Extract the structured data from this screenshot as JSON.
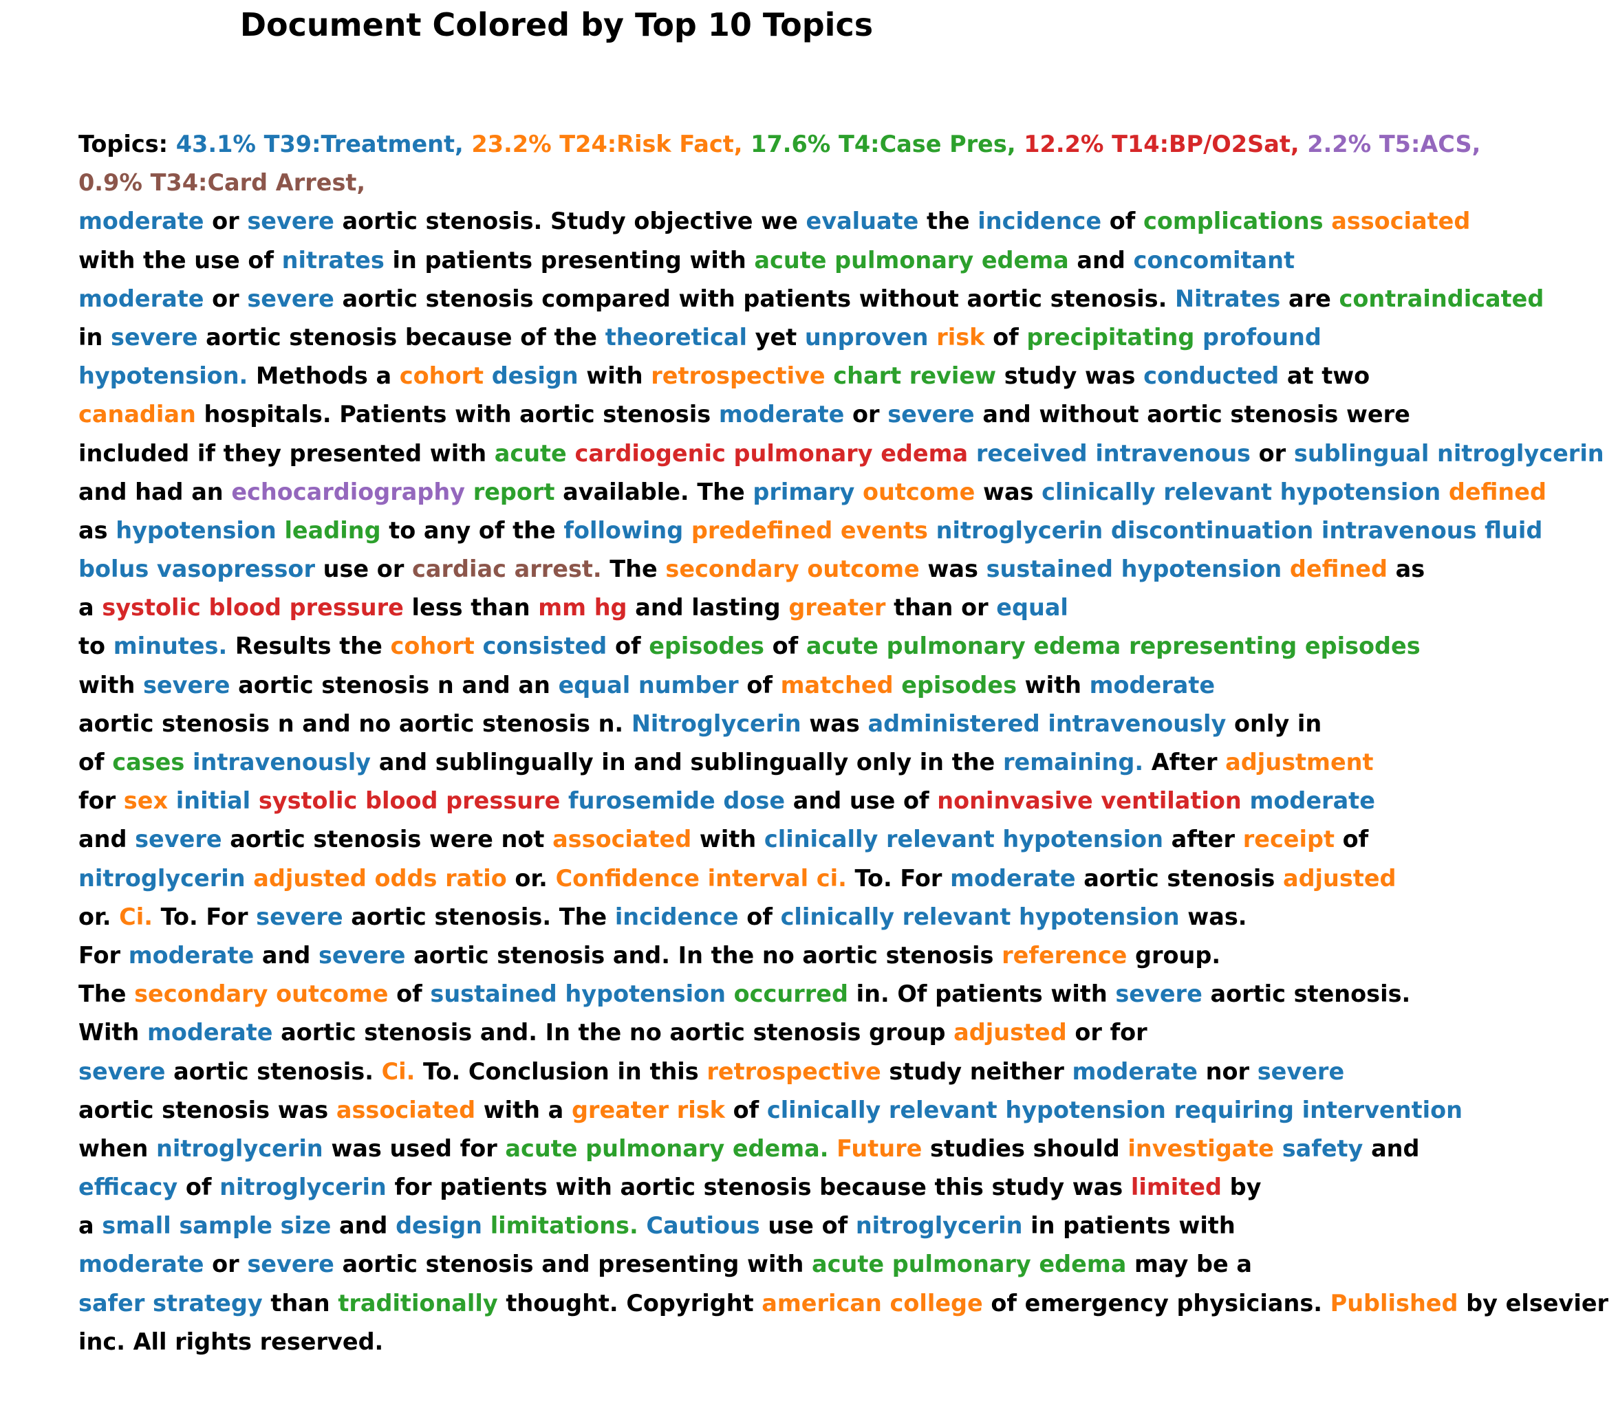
{
  "title": "Document Colored by Top 10 Topics",
  "colors": {
    "black": "#000000",
    "T39": "#1f77b4",
    "T24": "#ff7f0e",
    "T4": "#2ca02c",
    "T14": "#d62728",
    "T5": "#9467bd",
    "T34": "#8c564b"
  },
  "chart_data": {
    "type": "table",
    "title": "Document Colored by Top 10 Topics",
    "topics": [
      {
        "label": "43.1% T39:Treatment,",
        "id": "T39",
        "share_pct": 43.1,
        "color": "#1f77b4"
      },
      {
        "label": "23.2% T24:Risk Fact,",
        "id": "T24",
        "share_pct": 23.2,
        "color": "#ff7f0e"
      },
      {
        "label": "17.6% T4:Case Pres,",
        "id": "T4",
        "share_pct": 17.6,
        "color": "#2ca02c"
      },
      {
        "label": "12.2% T14:BP/O2Sat,",
        "id": "T14",
        "share_pct": 12.2,
        "color": "#d62728"
      },
      {
        "label": "2.2% T5:ACS,",
        "id": "T5",
        "share_pct": 2.2,
        "color": "#9467bd"
      },
      {
        "label": "0.9% T34:Card Arrest,",
        "id": "T34",
        "share_pct": 0.9,
        "color": "#8c564b"
      }
    ]
  },
  "lines": [
    [
      [
        "Topics: ",
        ""
      ],
      [
        "43.1% T39:Treatment,",
        "T39"
      ],
      [
        " ",
        ""
      ],
      [
        "23.2% T24:Risk Fact,",
        "T24"
      ],
      [
        " ",
        ""
      ],
      [
        "17.6% T4:Case Pres,",
        "T4"
      ],
      [
        " ",
        ""
      ],
      [
        "12.2% T14:BP/O2Sat,",
        "T14"
      ],
      [
        " ",
        ""
      ],
      [
        "2.2% T5:ACS,",
        "T5"
      ]
    ],
    [
      [
        "0.9% T34:Card Arrest,",
        "T34"
      ]
    ],
    [
      [
        "moderate",
        "T39"
      ],
      [
        " or ",
        ""
      ],
      [
        "severe",
        "T39"
      ],
      [
        " aortic stenosis. Study objective we ",
        ""
      ],
      [
        "evaluate",
        "T39"
      ],
      [
        " the ",
        ""
      ],
      [
        "incidence",
        "T39"
      ],
      [
        " of ",
        ""
      ],
      [
        "complications",
        "T4"
      ],
      [
        " ",
        ""
      ],
      [
        "associated",
        "T24"
      ]
    ],
    [
      [
        "with the use of ",
        ""
      ],
      [
        "nitrates",
        "T39"
      ],
      [
        " in patients presenting with ",
        ""
      ],
      [
        "acute pulmonary edema",
        "T4"
      ],
      [
        " and ",
        ""
      ],
      [
        "concomitant",
        "T39"
      ]
    ],
    [
      [
        "moderate",
        "T39"
      ],
      [
        " or ",
        ""
      ],
      [
        "severe",
        "T39"
      ],
      [
        " aortic stenosis compared with patients without aortic stenosis. ",
        ""
      ],
      [
        "Nitrates",
        "T39"
      ],
      [
        " are ",
        ""
      ],
      [
        "contraindicated",
        "T4"
      ]
    ],
    [
      [
        "in ",
        ""
      ],
      [
        "severe",
        "T39"
      ],
      [
        " aortic stenosis because of the ",
        ""
      ],
      [
        "theoretical",
        "T39"
      ],
      [
        " yet ",
        ""
      ],
      [
        "unproven",
        "T39"
      ],
      [
        " ",
        ""
      ],
      [
        "risk",
        "T24"
      ],
      [
        " of ",
        ""
      ],
      [
        "precipitating",
        "T4"
      ],
      [
        " ",
        ""
      ],
      [
        "profound",
        "T39"
      ]
    ],
    [
      [
        "hypotension.",
        "T39"
      ],
      [
        " Methods a ",
        ""
      ],
      [
        "cohort",
        "T24"
      ],
      [
        " ",
        ""
      ],
      [
        "design",
        "T39"
      ],
      [
        " with ",
        ""
      ],
      [
        "retrospective",
        "T24"
      ],
      [
        " ",
        ""
      ],
      [
        "chart review",
        "T4"
      ],
      [
        " study was ",
        ""
      ],
      [
        "conducted",
        "T39"
      ],
      [
        " at two",
        ""
      ]
    ],
    [
      [
        "canadian",
        "T24"
      ],
      [
        " hospitals. Patients with aortic stenosis ",
        ""
      ],
      [
        "moderate",
        "T39"
      ],
      [
        " or ",
        ""
      ],
      [
        "severe",
        "T39"
      ],
      [
        " and without aortic stenosis were",
        ""
      ]
    ],
    [
      [
        "included if they presented with ",
        ""
      ],
      [
        "acute",
        "T4"
      ],
      [
        " ",
        ""
      ],
      [
        "cardiogenic pulmonary edema",
        "T14"
      ],
      [
        " ",
        ""
      ],
      [
        "received intravenous",
        "T39"
      ],
      [
        " or ",
        ""
      ],
      [
        "sublingual nitroglycerin",
        "T39"
      ]
    ],
    [
      [
        "and had an ",
        ""
      ],
      [
        "echocardiography",
        "T5"
      ],
      [
        " ",
        ""
      ],
      [
        "report",
        "T4"
      ],
      [
        " available. The ",
        ""
      ],
      [
        "primary",
        "T39"
      ],
      [
        " ",
        ""
      ],
      [
        "outcome",
        "T24"
      ],
      [
        " was ",
        ""
      ],
      [
        "clinically relevant hypotension",
        "T39"
      ],
      [
        " ",
        ""
      ],
      [
        "defined",
        "T24"
      ]
    ],
    [
      [
        "as ",
        ""
      ],
      [
        "hypotension",
        "T39"
      ],
      [
        " ",
        ""
      ],
      [
        "leading",
        "T4"
      ],
      [
        " to any of the ",
        ""
      ],
      [
        "following",
        "T39"
      ],
      [
        " ",
        ""
      ],
      [
        "predefined events",
        "T24"
      ],
      [
        " ",
        ""
      ],
      [
        "nitroglycerin discontinuation intravenous fluid",
        "T39"
      ]
    ],
    [
      [
        "bolus vasopressor",
        "T39"
      ],
      [
        " use or ",
        ""
      ],
      [
        "cardiac arrest.",
        "T34"
      ],
      [
        " The ",
        ""
      ],
      [
        "secondary outcome",
        "T24"
      ],
      [
        " was ",
        ""
      ],
      [
        "sustained hypotension",
        "T39"
      ],
      [
        " ",
        ""
      ],
      [
        "defined",
        "T24"
      ],
      [
        " as",
        ""
      ]
    ],
    [
      [
        "a ",
        ""
      ],
      [
        "systolic blood pressure",
        "T14"
      ],
      [
        " less than ",
        ""
      ],
      [
        "mm hg",
        "T14"
      ],
      [
        " and lasting ",
        ""
      ],
      [
        "greater",
        "T24"
      ],
      [
        " than or ",
        ""
      ],
      [
        "equal",
        "T39"
      ]
    ],
    [
      [
        "to ",
        ""
      ],
      [
        "minutes.",
        "T39"
      ],
      [
        " Results the ",
        ""
      ],
      [
        "cohort",
        "T24"
      ],
      [
        " ",
        ""
      ],
      [
        "consisted",
        "T39"
      ],
      [
        " of ",
        ""
      ],
      [
        "episodes",
        "T4"
      ],
      [
        " of ",
        ""
      ],
      [
        "acute pulmonary edema representing episodes",
        "T4"
      ]
    ],
    [
      [
        "with ",
        ""
      ],
      [
        "severe",
        "T39"
      ],
      [
        " aortic stenosis n and an ",
        ""
      ],
      [
        "equal number",
        "T39"
      ],
      [
        " of ",
        ""
      ],
      [
        "matched",
        "T24"
      ],
      [
        " ",
        ""
      ],
      [
        "episodes",
        "T4"
      ],
      [
        " with ",
        ""
      ],
      [
        "moderate",
        "T39"
      ]
    ],
    [
      [
        "aortic stenosis n and no aortic stenosis n. ",
        ""
      ],
      [
        "Nitroglycerin",
        "T39"
      ],
      [
        " was ",
        ""
      ],
      [
        "administered intravenously",
        "T39"
      ],
      [
        " only in",
        ""
      ]
    ],
    [
      [
        "of ",
        ""
      ],
      [
        "cases",
        "T4"
      ],
      [
        " ",
        ""
      ],
      [
        "intravenously",
        "T39"
      ],
      [
        " and sublingually in and sublingually only in the ",
        ""
      ],
      [
        "remaining.",
        "T39"
      ],
      [
        " After ",
        ""
      ],
      [
        "adjustment",
        "T24"
      ]
    ],
    [
      [
        "for ",
        ""
      ],
      [
        "sex",
        "T24"
      ],
      [
        " ",
        ""
      ],
      [
        "initial",
        "T39"
      ],
      [
        " ",
        ""
      ],
      [
        "systolic blood pressure",
        "T14"
      ],
      [
        " ",
        ""
      ],
      [
        "furosemide dose",
        "T39"
      ],
      [
        " and use of ",
        ""
      ],
      [
        "noninvasive ventilation",
        "T14"
      ],
      [
        " ",
        ""
      ],
      [
        "moderate",
        "T39"
      ]
    ],
    [
      [
        "and ",
        ""
      ],
      [
        "severe",
        "T39"
      ],
      [
        " aortic stenosis were not ",
        ""
      ],
      [
        "associated",
        "T24"
      ],
      [
        " with ",
        ""
      ],
      [
        "clinically relevant hypotension",
        "T39"
      ],
      [
        " after ",
        ""
      ],
      [
        "receipt",
        "T24"
      ],
      [
        " of",
        ""
      ]
    ],
    [
      [
        "nitroglycerin",
        "T39"
      ],
      [
        " ",
        ""
      ],
      [
        "adjusted odds ratio",
        "T24"
      ],
      [
        " or. ",
        ""
      ],
      [
        "Confidence interval ci.",
        "T24"
      ],
      [
        " To. For ",
        ""
      ],
      [
        "moderate",
        "T39"
      ],
      [
        " aortic stenosis ",
        ""
      ],
      [
        "adjusted",
        "T24"
      ]
    ],
    [
      [
        "or. ",
        ""
      ],
      [
        "Ci.",
        "T24"
      ],
      [
        " To. For ",
        ""
      ],
      [
        "severe",
        "T39"
      ],
      [
        " aortic stenosis. The ",
        ""
      ],
      [
        "incidence",
        "T39"
      ],
      [
        " of ",
        ""
      ],
      [
        "clinically relevant hypotension",
        "T39"
      ],
      [
        " was.",
        ""
      ]
    ],
    [
      [
        "For ",
        ""
      ],
      [
        "moderate",
        "T39"
      ],
      [
        " and ",
        ""
      ],
      [
        "severe",
        "T39"
      ],
      [
        " aortic stenosis and. In the no aortic stenosis ",
        ""
      ],
      [
        "reference",
        "T24"
      ],
      [
        " group.",
        ""
      ]
    ],
    [
      [
        "The ",
        ""
      ],
      [
        "secondary outcome",
        "T24"
      ],
      [
        " of ",
        ""
      ],
      [
        "sustained hypotension",
        "T39"
      ],
      [
        " ",
        ""
      ],
      [
        "occurred",
        "T4"
      ],
      [
        " in. Of patients with ",
        ""
      ],
      [
        "severe",
        "T39"
      ],
      [
        " aortic stenosis.",
        ""
      ]
    ],
    [
      [
        "With ",
        ""
      ],
      [
        "moderate",
        "T39"
      ],
      [
        " aortic stenosis and. In the no aortic stenosis group ",
        ""
      ],
      [
        "adjusted",
        "T24"
      ],
      [
        " or for",
        ""
      ]
    ],
    [
      [
        "severe",
        "T39"
      ],
      [
        " aortic stenosis. ",
        ""
      ],
      [
        "Ci.",
        "T24"
      ],
      [
        " To. Conclusion in this ",
        ""
      ],
      [
        "retrospective",
        "T24"
      ],
      [
        " study neither ",
        ""
      ],
      [
        "moderate",
        "T39"
      ],
      [
        " nor ",
        ""
      ],
      [
        "severe",
        "T39"
      ]
    ],
    [
      [
        "aortic stenosis was ",
        ""
      ],
      [
        "associated",
        "T24"
      ],
      [
        " with a ",
        ""
      ],
      [
        "greater risk",
        "T24"
      ],
      [
        " of ",
        ""
      ],
      [
        "clinically relevant hypotension requiring intervention",
        "T39"
      ]
    ],
    [
      [
        "when ",
        ""
      ],
      [
        "nitroglycerin",
        "T39"
      ],
      [
        " was used for ",
        ""
      ],
      [
        "acute pulmonary edema.",
        "T4"
      ],
      [
        " ",
        ""
      ],
      [
        "Future",
        "T24"
      ],
      [
        " studies should ",
        ""
      ],
      [
        "investigate",
        "T24"
      ],
      [
        " ",
        ""
      ],
      [
        "safety",
        "T39"
      ],
      [
        " and",
        ""
      ]
    ],
    [
      [
        "efficacy",
        "T39"
      ],
      [
        " of ",
        ""
      ],
      [
        "nitroglycerin",
        "T39"
      ],
      [
        " for patients with aortic stenosis because this study was ",
        ""
      ],
      [
        "limited",
        "T14"
      ],
      [
        " by",
        ""
      ]
    ],
    [
      [
        "a ",
        ""
      ],
      [
        "small sample size",
        "T39"
      ],
      [
        " and ",
        ""
      ],
      [
        "design",
        "T39"
      ],
      [
        " ",
        ""
      ],
      [
        "limitations.",
        "T4"
      ],
      [
        " ",
        ""
      ],
      [
        "Cautious",
        "T39"
      ],
      [
        " use of ",
        ""
      ],
      [
        "nitroglycerin",
        "T39"
      ],
      [
        " in patients with",
        ""
      ]
    ],
    [
      [
        "moderate",
        "T39"
      ],
      [
        " or ",
        ""
      ],
      [
        "severe",
        "T39"
      ],
      [
        " aortic stenosis and presenting with ",
        ""
      ],
      [
        "acute pulmonary edema",
        "T4"
      ],
      [
        " may be a",
        ""
      ]
    ],
    [
      [
        "safer strategy",
        "T39"
      ],
      [
        " than ",
        ""
      ],
      [
        "traditionally",
        "T4"
      ],
      [
        " thought. Copyright ",
        ""
      ],
      [
        "american college",
        "T24"
      ],
      [
        " of emergency physicians. ",
        ""
      ],
      [
        "Published",
        "T24"
      ],
      [
        " by elsevier",
        ""
      ]
    ],
    [
      [
        "inc. All rights reserved.",
        ""
      ]
    ]
  ]
}
